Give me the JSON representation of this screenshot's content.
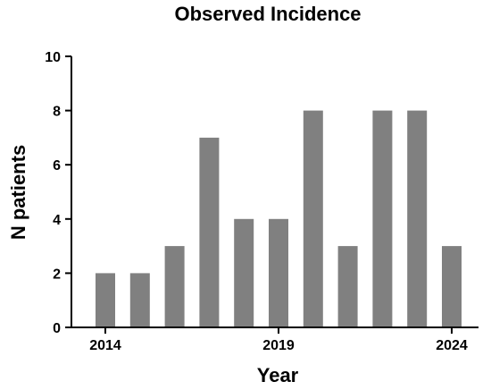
{
  "chart_data": {
    "type": "bar",
    "title": "Observed Incidence",
    "xlabel": "Year",
    "ylabel": "N patients",
    "categories": [
      2014,
      2015,
      2016,
      2017,
      2018,
      2019,
      2020,
      2021,
      2022,
      2023,
      2024
    ],
    "values": [
      2,
      2,
      3,
      7,
      4,
      4,
      8,
      3,
      8,
      8,
      3
    ],
    "ylim": [
      0,
      10
    ],
    "yticks": [
      0,
      2,
      4,
      6,
      8,
      10
    ],
    "xtick_labels": [
      {
        "year": 2014,
        "label": "2014"
      },
      {
        "year": 2019,
        "label": "2019"
      },
      {
        "year": 2024,
        "label": "2024"
      }
    ],
    "grid": false,
    "legend": "none",
    "bar_color": "#808080",
    "axis_color": "#000000"
  }
}
